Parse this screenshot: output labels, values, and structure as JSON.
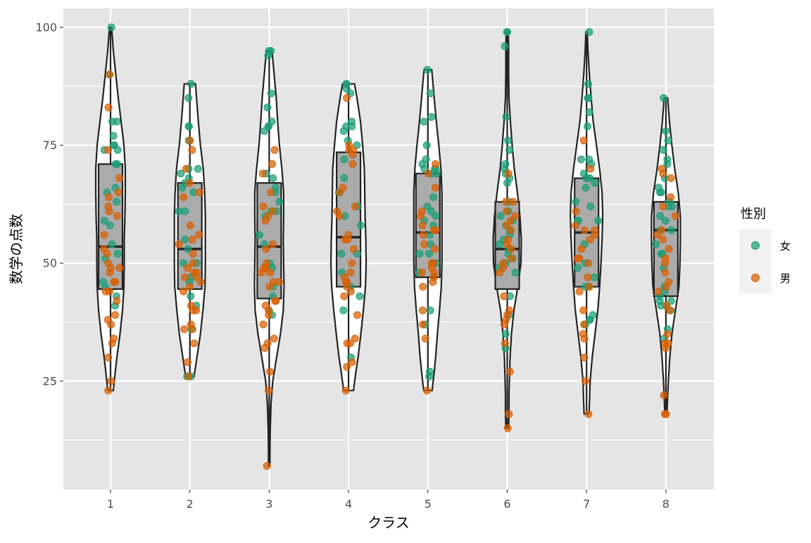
{
  "chart_data": {
    "type": "violin",
    "overlays": [
      "boxplot",
      "jittered points"
    ],
    "xlabel": "クラス",
    "ylabel": "数学の点数",
    "categories": [
      "1",
      "2",
      "3",
      "4",
      "5",
      "6",
      "7",
      "8"
    ],
    "ylim": [
      2,
      104
    ],
    "yticks": [
      25,
      50,
      75,
      100
    ],
    "grid": true,
    "legend": {
      "title": "性別",
      "placement": "right",
      "entries": [
        {
          "label": "女",
          "color": "#1B9E77"
        },
        {
          "label": "男",
          "color": "#D95F02"
        }
      ]
    },
    "colors": {
      "panel_bg": "#E5E5E5",
      "grid": "#FFFFFF",
      "violin_fill": "#FFFFFF",
      "outline": "#222222",
      "box_fill": "#ABABAB",
      "female": "#1B9E77",
      "male": "#D95F02"
    },
    "classes": [
      {
        "name": "1",
        "box": {
          "q1": 44.5,
          "median": 53.5,
          "q3": 71
        },
        "violin": [
          [
            23,
            0.08
          ],
          [
            26,
            0.12
          ],
          [
            30,
            0.18
          ],
          [
            35,
            0.27
          ],
          [
            40,
            0.34
          ],
          [
            45,
            0.38
          ],
          [
            50,
            0.39
          ],
          [
            55,
            0.39
          ],
          [
            60,
            0.41
          ],
          [
            65,
            0.42
          ],
          [
            70,
            0.42
          ],
          [
            75,
            0.38
          ],
          [
            80,
            0.3
          ],
          [
            85,
            0.22
          ],
          [
            90,
            0.15
          ],
          [
            95,
            0.08
          ],
          [
            100,
            0.03
          ]
        ],
        "female": [
          100,
          90,
          80,
          80,
          77,
          75,
          74,
          74,
          75,
          71,
          71,
          65,
          63,
          59,
          54,
          51,
          45,
          41,
          52,
          43,
          46,
          58,
          66
        ],
        "male": [
          90,
          83,
          74,
          68,
          65,
          64,
          61,
          60,
          56,
          53,
          52,
          50,
          49,
          49,
          48,
          46,
          44,
          44,
          42,
          39,
          38,
          37,
          34,
          33,
          30,
          25,
          23,
          46,
          62
        ]
      },
      {
        "name": "2",
        "box": {
          "q1": 44.5,
          "median": 53,
          "q3": 67
        },
        "violin": [
          [
            26,
            0.12
          ],
          [
            30,
            0.2
          ],
          [
            35,
            0.3
          ],
          [
            40,
            0.37
          ],
          [
            45,
            0.43
          ],
          [
            50,
            0.44
          ],
          [
            55,
            0.44
          ],
          [
            60,
            0.44
          ],
          [
            65,
            0.42
          ],
          [
            70,
            0.38
          ],
          [
            75,
            0.3
          ],
          [
            80,
            0.24
          ],
          [
            85,
            0.19
          ],
          [
            88,
            0.16
          ]
        ],
        "female": [
          88,
          85,
          79,
          79,
          76,
          70,
          70,
          69,
          67,
          66,
          65,
          61,
          61,
          55,
          53,
          50,
          50,
          46,
          43,
          41,
          36,
          26,
          26,
          47,
          68
        ],
        "male": [
          76,
          74,
          70,
          67,
          65,
          64,
          58,
          56,
          55,
          54,
          52,
          50,
          49,
          48,
          48,
          47,
          47,
          46,
          45,
          44,
          41,
          40,
          40,
          37,
          36,
          36,
          33,
          29,
          26
        ]
      },
      {
        "name": "3",
        "box": {
          "q1": 42.5,
          "median": 53.5,
          "q3": 67
        },
        "violin": [
          [
            7,
            0.02
          ],
          [
            10,
            0.02
          ],
          [
            15,
            0.03
          ],
          [
            20,
            0.05
          ],
          [
            25,
            0.1
          ],
          [
            30,
            0.21
          ],
          [
            35,
            0.32
          ],
          [
            40,
            0.4
          ],
          [
            45,
            0.42
          ],
          [
            50,
            0.41
          ],
          [
            55,
            0.4
          ],
          [
            60,
            0.41
          ],
          [
            65,
            0.41
          ],
          [
            70,
            0.36
          ],
          [
            75,
            0.29
          ],
          [
            80,
            0.24
          ],
          [
            85,
            0.2
          ],
          [
            90,
            0.14
          ],
          [
            95,
            0.08
          ]
        ],
        "female": [
          95,
          95,
          94,
          86,
          83,
          80,
          79,
          79,
          78,
          69,
          68,
          66,
          65,
          63,
          61,
          61,
          60,
          56,
          54,
          50,
          49,
          45,
          43,
          40,
          39
        ],
        "male": [
          74,
          71,
          69,
          65,
          62,
          61,
          60,
          59,
          54,
          53,
          50,
          49,
          49,
          48,
          48,
          46,
          46,
          45,
          42,
          42,
          41,
          40,
          39,
          37,
          34,
          33,
          32,
          27,
          23,
          7
        ]
      },
      {
        "name": "4",
        "box": {
          "q1": 45,
          "median": 55.5,
          "q3": 73.5
        },
        "violin": [
          [
            23,
            0.14
          ],
          [
            27,
            0.21
          ],
          [
            30,
            0.27
          ],
          [
            35,
            0.35
          ],
          [
            40,
            0.42
          ],
          [
            45,
            0.48
          ],
          [
            50,
            0.5
          ],
          [
            55,
            0.49
          ],
          [
            60,
            0.47
          ],
          [
            65,
            0.46
          ],
          [
            70,
            0.45
          ],
          [
            75,
            0.4
          ],
          [
            80,
            0.34
          ],
          [
            85,
            0.24
          ],
          [
            88,
            0.17
          ]
        ],
        "female": [
          88,
          88,
          87,
          86,
          80,
          79,
          79,
          78,
          76,
          75,
          68,
          65,
          62,
          60,
          58,
          52,
          48,
          45,
          43,
          40,
          30,
          72,
          52
        ],
        "male": [
          85,
          75,
          74,
          74,
          73,
          71,
          66,
          65,
          62,
          61,
          60,
          56,
          55,
          55,
          53,
          50,
          48,
          47,
          46,
          45,
          44,
          43,
          39,
          34,
          33,
          33,
          29,
          28,
          23,
          46
        ]
      },
      {
        "name": "5",
        "box": {
          "q1": 47,
          "median": 56.5,
          "q3": 69
        },
        "violin": [
          [
            23,
            0.12
          ],
          [
            27,
            0.18
          ],
          [
            30,
            0.22
          ],
          [
            35,
            0.27
          ],
          [
            40,
            0.33
          ],
          [
            45,
            0.38
          ],
          [
            50,
            0.4
          ],
          [
            55,
            0.4
          ],
          [
            60,
            0.4
          ],
          [
            65,
            0.4
          ],
          [
            70,
            0.37
          ],
          [
            75,
            0.31
          ],
          [
            80,
            0.24
          ],
          [
            85,
            0.18
          ],
          [
            91,
            0.11
          ]
        ],
        "female": [
          91,
          86,
          81,
          80,
          75,
          72,
          71,
          70,
          70,
          70,
          69,
          69,
          64,
          62,
          61,
          60,
          59,
          58,
          56,
          54,
          52,
          52,
          50,
          50,
          48,
          40,
          37,
          27,
          26
        ],
        "male": [
          71,
          69,
          66,
          61,
          60,
          58,
          57,
          57,
          56,
          54,
          53,
          50,
          50,
          49,
          48,
          48,
          47,
          46,
          45,
          40,
          37,
          34,
          23
        ]
      },
      {
        "name": "6",
        "box": {
          "q1": 44.5,
          "median": 53,
          "q3": 63
        },
        "violin": [
          [
            15,
            0.04
          ],
          [
            18,
            0.05
          ],
          [
            22,
            0.05
          ],
          [
            25,
            0.06
          ],
          [
            30,
            0.08
          ],
          [
            35,
            0.12
          ],
          [
            40,
            0.19
          ],
          [
            45,
            0.3
          ],
          [
            50,
            0.39
          ],
          [
            55,
            0.4
          ],
          [
            60,
            0.36
          ],
          [
            65,
            0.29
          ],
          [
            70,
            0.2
          ],
          [
            75,
            0.14
          ],
          [
            80,
            0.09
          ],
          [
            85,
            0.05
          ],
          [
            90,
            0.04
          ],
          [
            95,
            0.04
          ],
          [
            99,
            0.03
          ]
        ],
        "female": [
          99,
          99,
          96,
          81,
          76,
          74,
          71,
          70,
          69,
          68,
          67,
          63,
          61,
          60,
          59,
          58,
          57,
          56,
          55,
          54,
          53,
          52,
          51,
          50,
          49,
          48,
          43,
          39,
          35,
          32
        ],
        "male": [
          69,
          63,
          63,
          61,
          60,
          59,
          58,
          57,
          55,
          54,
          53,
          51,
          50,
          49,
          48,
          43,
          40,
          39,
          38,
          37,
          33,
          27,
          18,
          15
        ]
      },
      {
        "name": "7",
        "box": {
          "q1": 45,
          "median": 56.5,
          "q3": 68
        },
        "violin": [
          [
            18,
            0.07
          ],
          [
            22,
            0.09
          ],
          [
            25,
            0.1
          ],
          [
            30,
            0.16
          ],
          [
            35,
            0.24
          ],
          [
            40,
            0.32
          ],
          [
            45,
            0.37
          ],
          [
            50,
            0.41
          ],
          [
            55,
            0.44
          ],
          [
            60,
            0.46
          ],
          [
            65,
            0.44
          ],
          [
            70,
            0.37
          ],
          [
            75,
            0.28
          ],
          [
            80,
            0.19
          ],
          [
            85,
            0.13
          ],
          [
            90,
            0.08
          ],
          [
            95,
            0.04
          ],
          [
            99,
            0.02
          ]
        ],
        "female": [
          99,
          88,
          85,
          85,
          82,
          79,
          72,
          72,
          71,
          69,
          68,
          68,
          67,
          66,
          63,
          62,
          59,
          59,
          59,
          54,
          50,
          49,
          47,
          45,
          45,
          39,
          38,
          38,
          37
        ],
        "male": [
          76,
          70,
          61,
          58,
          57,
          57,
          56,
          55,
          53,
          51,
          51,
          50,
          47,
          45,
          44,
          40,
          37,
          35,
          34,
          30,
          25,
          18
        ]
      },
      {
        "name": "8",
        "box": {
          "q1": 43,
          "median": 57,
          "q3": 63
        },
        "violin": [
          [
            18,
            0.03
          ],
          [
            22,
            0.05
          ],
          [
            25,
            0.07
          ],
          [
            30,
            0.11
          ],
          [
            35,
            0.17
          ],
          [
            40,
            0.27
          ],
          [
            45,
            0.37
          ],
          [
            50,
            0.4
          ],
          [
            55,
            0.41
          ],
          [
            60,
            0.41
          ],
          [
            65,
            0.35
          ],
          [
            70,
            0.25
          ],
          [
            75,
            0.17
          ],
          [
            80,
            0.1
          ],
          [
            85,
            0.05
          ]
        ],
        "female": [
          85,
          78,
          76,
          74,
          72,
          71,
          68,
          66,
          65,
          65,
          63,
          62,
          62,
          60,
          59,
          57,
          57,
          54,
          52,
          52,
          49,
          45,
          44,
          43,
          42,
          42,
          41,
          41,
          40,
          36,
          34
        ],
        "male": [
          70,
          69,
          68,
          64,
          62,
          60,
          57,
          56,
          55,
          53,
          51,
          50,
          48,
          46,
          45,
          44,
          41,
          40,
          35,
          33,
          33,
          32,
          22,
          18,
          18
        ]
      }
    ]
  }
}
